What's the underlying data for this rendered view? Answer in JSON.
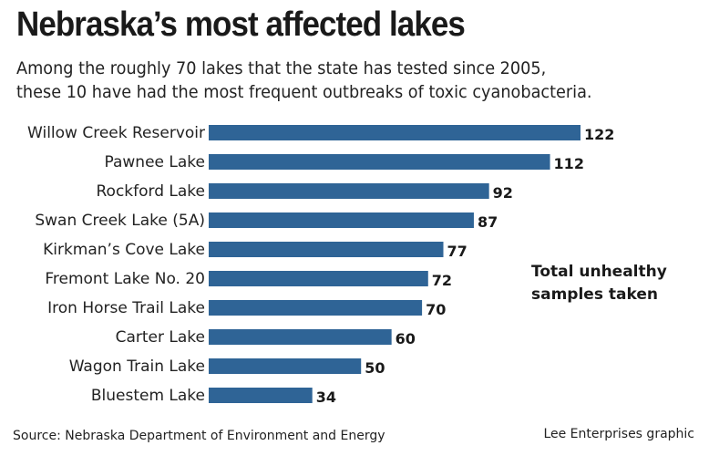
{
  "chart_data": {
    "type": "bar",
    "orientation": "horizontal",
    "title": "Nebraska’s most affected lakes",
    "subtitle": [
      "Among the roughly 70 lakes that the state has tested since 2005,",
      "these 10 have had the most frequent outbreaks of toxic cyanobacteria."
    ],
    "categories": [
      "Willow Creek Reservoir",
      "Pawnee Lake",
      "Rockford Lake",
      "Swan Creek Lake (5A)",
      "Kirkman’s Cove Lake",
      "Fremont Lake No. 20",
      "Iron Horse Trail Lake",
      "Carter Lake",
      "Wagon Train Lake",
      "Bluestem Lake"
    ],
    "values": [
      122,
      112,
      92,
      87,
      77,
      72,
      70,
      60,
      50,
      34
    ],
    "legend": [
      "Total unhealthy",
      "samples taken"
    ],
    "bar_color": "#2f6496",
    "xlim": [
      0,
      122
    ],
    "grid": false
  },
  "footer": {
    "source": "Source: Nebraska Department of Environment and Energy",
    "credit": "Lee Enterprises graphic"
  }
}
